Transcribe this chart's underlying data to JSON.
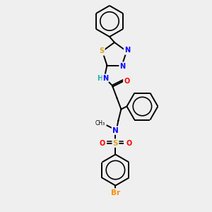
{
  "background_color": "#efefef",
  "atom_colors": {
    "N": "#0000FF",
    "O": "#FF0000",
    "S": "#DAA520",
    "Br": "#FF8C00",
    "H": "#20B2AA",
    "C": "#000000"
  },
  "bond_lw": 1.4,
  "font_size": 7.0
}
